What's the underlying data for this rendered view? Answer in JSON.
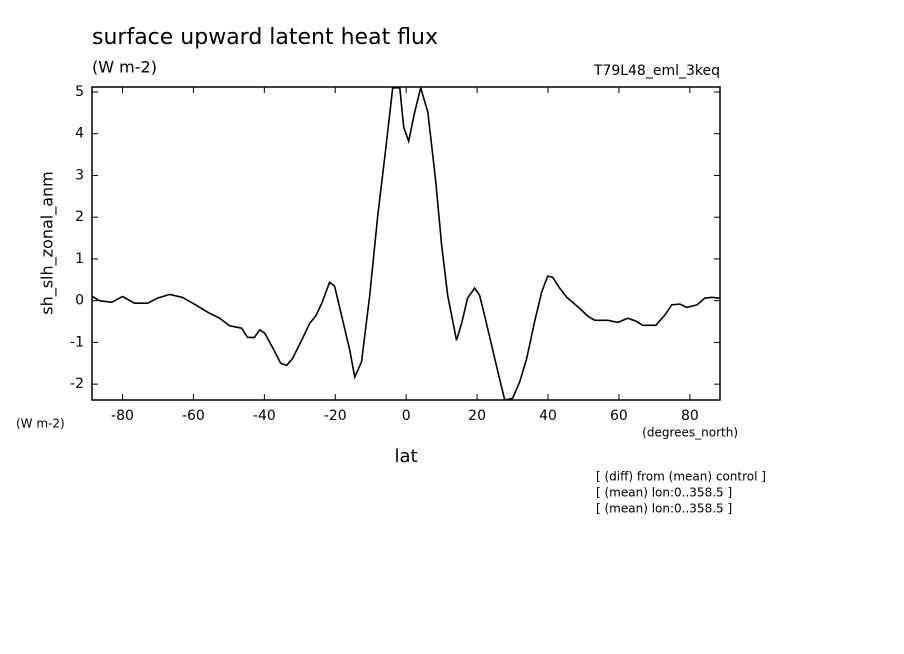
{
  "chart_data": {
    "type": "line",
    "title": "surface upward latent heat flux",
    "units": "(W m-2)",
    "run": "T79L48_eml_3keq",
    "y_label": "sh_slh_zonal_anm",
    "y_units": "(W m-2)",
    "x_label": "lat",
    "x_units": "(degrees_north)",
    "notes": [
      "[ (diff) from (mean) control ]",
      "[ (mean) lon:0..358.5 ]",
      "[ (mean) lon:0..358.5 ]"
    ],
    "xlim": [
      -88.6,
      88.5
    ],
    "ylim": [
      -2.38,
      5.12
    ],
    "xticks": [
      -80,
      -60,
      -40,
      -20,
      0,
      20,
      40,
      60,
      80
    ],
    "yticks": [
      -2,
      -1,
      0,
      1,
      2,
      3,
      4,
      5
    ],
    "x": [
      -88.5,
      -86.5,
      -83.1,
      -80,
      -76.6,
      -72.9,
      -70.1,
      -66.7,
      -63.1,
      -59.4,
      -55.5,
      -52.6,
      -49.8,
      -46.4,
      -44.7,
      -42.8,
      -41.3,
      -39.9,
      -37.7,
      -35.4,
      -33.7,
      -32.0,
      -29.2,
      -27.2,
      -25.5,
      -23.8,
      -21.6,
      -20.2,
      -17.9,
      -15.9,
      -14.5,
      -12.6,
      -10.3,
      -8.0,
      -5.8,
      -3.8,
      -1.8,
      -0.7,
      0.7,
      2.4,
      4.1,
      6.1,
      8.3,
      10.0,
      11.7,
      14.2,
      15.7,
      17.3,
      19.3,
      20.7,
      22.1,
      24.1,
      26.1,
      27.8,
      30.0,
      32.0,
      34.0,
      36.3,
      38.2,
      39.9,
      41.3,
      43.3,
      45.3,
      47.5,
      49.5,
      51.2,
      53.2,
      56.9,
      59.7,
      62.5,
      64.8,
      66.7,
      70.4,
      72.9,
      74.9,
      77.2,
      79.1,
      82.0,
      84.2,
      86.2,
      88.5
    ],
    "series": [
      {
        "color": "#000000",
        "values": [
          0.1,
          0.0,
          -0.04,
          0.1,
          -0.06,
          -0.06,
          0.06,
          0.15,
          0.08,
          -0.1,
          -0.3,
          -0.42,
          -0.6,
          -0.66,
          -0.88,
          -0.88,
          -0.7,
          -0.78,
          -1.12,
          -1.5,
          -1.55,
          -1.38,
          -0.9,
          -0.54,
          -0.37,
          -0.06,
          0.44,
          0.35,
          -0.47,
          -1.19,
          -1.83,
          -1.47,
          0.11,
          2.05,
          3.61,
          5.1,
          5.1,
          4.16,
          3.82,
          4.52,
          5.1,
          4.52,
          2.89,
          1.33,
          0.13,
          -0.95,
          -0.52,
          0.06,
          0.3,
          0.13,
          -0.35,
          -1.07,
          -1.79,
          -2.38,
          -2.34,
          -1.95,
          -1.38,
          -0.47,
          0.2,
          0.59,
          0.56,
          0.3,
          0.08,
          -0.08,
          -0.23,
          -0.37,
          -0.47,
          -0.47,
          -0.52,
          -0.42,
          -0.49,
          -0.59,
          -0.59,
          -0.35,
          -0.1,
          -0.08,
          -0.16,
          -0.1,
          0.06,
          0.08,
          0.06
        ]
      }
    ]
  }
}
